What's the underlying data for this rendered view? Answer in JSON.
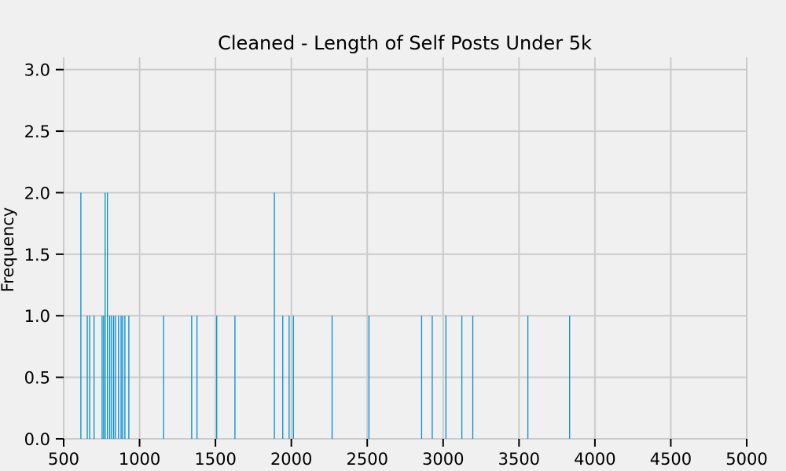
{
  "chart_data": {
    "type": "bar",
    "title": "Cleaned - Length of Self Posts Under 5k",
    "xlabel": "",
    "ylabel": "Frequency",
    "xlim": [
      500,
      5000
    ],
    "ylim": [
      0,
      3.1
    ],
    "x_ticks": [
      "500",
      "1000",
      "1500",
      "2000",
      "2500",
      "3000",
      "3500",
      "4000",
      "4500",
      "5000"
    ],
    "y_ticks": [
      "0.0",
      "0.5",
      "1.0",
      "1.5",
      "2.0",
      "2.5",
      "3.0"
    ],
    "grid": true,
    "bar_color": "#008fd5",
    "bars": [
      {
        "x": 610,
        "count": 2
      },
      {
        "x": 652,
        "count": 1
      },
      {
        "x": 668,
        "count": 1
      },
      {
        "x": 697,
        "count": 1
      },
      {
        "x": 750,
        "count": 1
      },
      {
        "x": 760,
        "count": 1
      },
      {
        "x": 770,
        "count": 2
      },
      {
        "x": 785,
        "count": 2
      },
      {
        "x": 800,
        "count": 1
      },
      {
        "x": 812,
        "count": 1
      },
      {
        "x": 826,
        "count": 1
      },
      {
        "x": 838,
        "count": 1
      },
      {
        "x": 858,
        "count": 1
      },
      {
        "x": 875,
        "count": 1
      },
      {
        "x": 885,
        "count": 1
      },
      {
        "x": 900,
        "count": 1
      },
      {
        "x": 926,
        "count": 1
      },
      {
        "x": 1155,
        "count": 1
      },
      {
        "x": 1340,
        "count": 1
      },
      {
        "x": 1375,
        "count": 1
      },
      {
        "x": 1505,
        "count": 1
      },
      {
        "x": 1625,
        "count": 1
      },
      {
        "x": 1885,
        "count": 2
      },
      {
        "x": 1940,
        "count": 1
      },
      {
        "x": 1982,
        "count": 1
      },
      {
        "x": 2010,
        "count": 1
      },
      {
        "x": 2265,
        "count": 1
      },
      {
        "x": 2508,
        "count": 1
      },
      {
        "x": 2855,
        "count": 1
      },
      {
        "x": 2925,
        "count": 1
      },
      {
        "x": 3015,
        "count": 1
      },
      {
        "x": 3120,
        "count": 1
      },
      {
        "x": 3192,
        "count": 1
      },
      {
        "x": 3555,
        "count": 1
      },
      {
        "x": 3830,
        "count": 1
      }
    ]
  }
}
